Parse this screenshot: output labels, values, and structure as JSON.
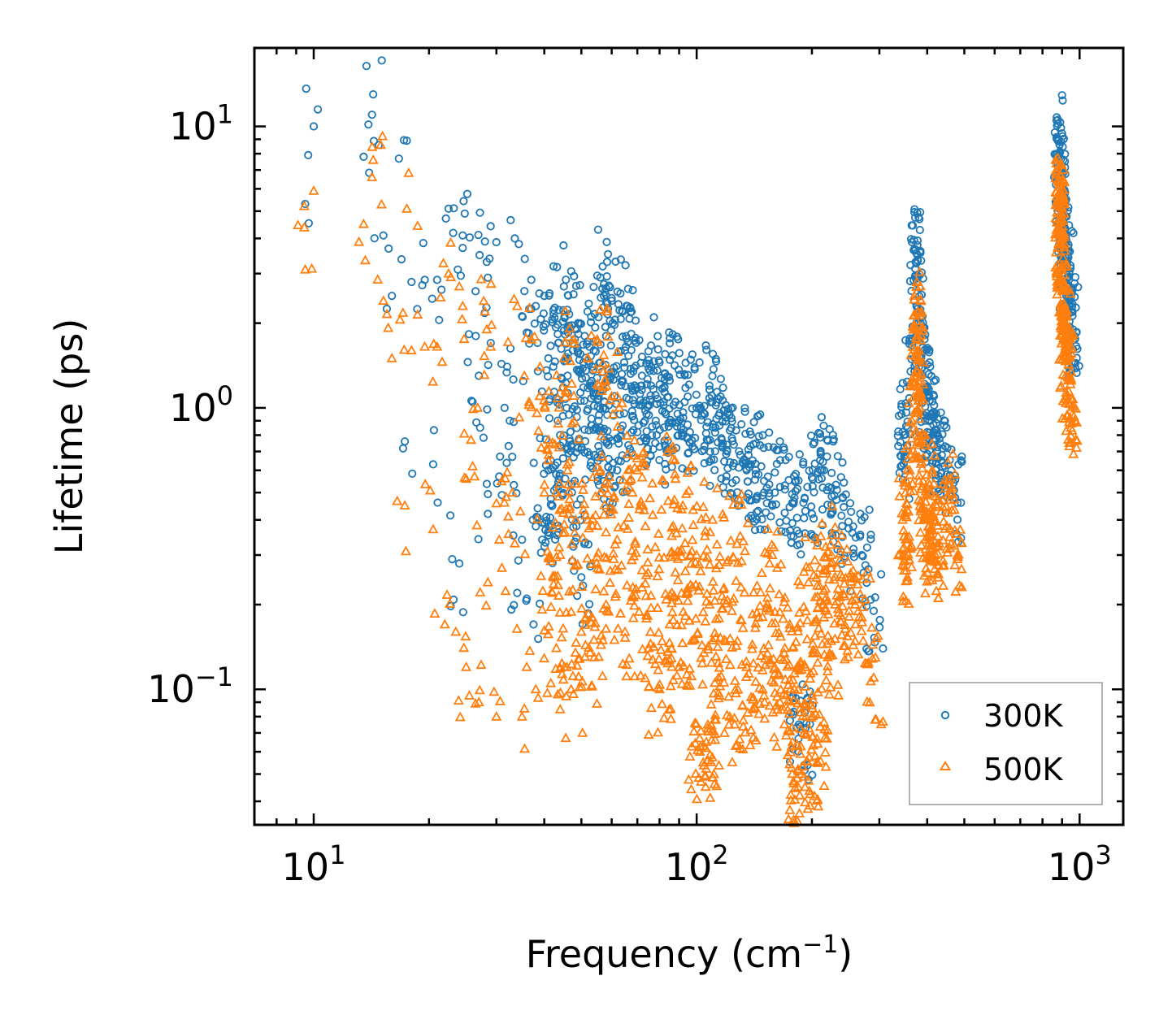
{
  "chart_data": {
    "type": "scatter",
    "title": "",
    "xlabel": "Frequency (cm",
    "xlabel_sup": "−1",
    "xlabel_end": ")",
    "ylabel": "Lifetime (ps)",
    "xscale": "log",
    "yscale": "log",
    "xlim": [
      7,
      1300
    ],
    "ylim": [
      0.033,
      19
    ],
    "x_ticks": [
      {
        "value": 10,
        "base": "10",
        "exp": "1"
      },
      {
        "value": 100,
        "base": "10",
        "exp": "2"
      },
      {
        "value": 1000,
        "base": "10",
        "exp": "3"
      }
    ],
    "y_ticks": [
      {
        "value": 0.1,
        "base": "10",
        "exp": "−1"
      },
      {
        "value": 1,
        "base": "10",
        "exp": "0"
      },
      {
        "value": 10,
        "base": "10",
        "exp": "1"
      }
    ],
    "legend_position": "bottom-right",
    "series": [
      {
        "name": "300K",
        "marker": "circle",
        "color": "#1f77b4",
        "points": [
          [
            9.5,
            5.3
          ],
          [
            10,
            10
          ],
          [
            13.5,
            7.8
          ],
          [
            14.2,
            11
          ],
          [
            14.3,
            13
          ],
          [
            15.2,
            4.1
          ],
          [
            16,
            2.5
          ],
          [
            17.3,
            0.76
          ],
          [
            17.5,
            8.9
          ],
          [
            18,
            2.8
          ],
          [
            19.5,
            2.85
          ],
          [
            20.5,
            0.63
          ],
          [
            21,
            2.85
          ],
          [
            22.5,
            5.1
          ],
          [
            23,
            0.29
          ],
          [
            24,
            0.28
          ],
          [
            24.5,
            3.7
          ],
          [
            24.5,
            4.1
          ],
          [
            24.8,
            4.9
          ],
          [
            26,
            1.05
          ],
          [
            26.5,
            1.8
          ],
          [
            27,
            1.3
          ],
          [
            27.2,
            0.85
          ],
          [
            28,
            3.9
          ],
          [
            28.3,
            3.3
          ],
          [
            28.5,
            2.9
          ],
          [
            28.5,
            0.42
          ],
          [
            29,
            1.7
          ],
          [
            30.5,
            0.57
          ],
          [
            31,
            0.49
          ],
          [
            31.5,
            1
          ],
          [
            32,
            1.4
          ],
          [
            32.5,
            0.9
          ],
          [
            33,
            0.67
          ],
          [
            33.5,
            4
          ],
          [
            34,
            0.22
          ],
          [
            35,
            0.34
          ],
          [
            35.5,
            2.6
          ],
          [
            36,
            0.21
          ],
          [
            36,
            1.85
          ],
          [
            37,
            2.85
          ],
          [
            37.5,
            0.17
          ],
          [
            38,
            2.3
          ],
          [
            38.5,
            1.35
          ],
          [
            39,
            0.78
          ],
          [
            39.5,
            0.34
          ],
          [
            40,
            2.5
          ],
          [
            40.5,
            0.41
          ],
          [
            41,
            1.5
          ],
          [
            42,
            0.45
          ],
          [
            43,
            0.52
          ],
          [
            43.5,
            1.7
          ],
          [
            44,
            0.8
          ],
          [
            45,
            2.7
          ],
          [
            46,
            1.3
          ],
          [
            47,
            0.73
          ],
          [
            47.5,
            1.6
          ],
          [
            48,
            0.55
          ],
          [
            49,
            2
          ],
          [
            50,
            0.25
          ],
          [
            51,
            1.8
          ],
          [
            52,
            0.99
          ],
          [
            53,
            1.2
          ],
          [
            54,
            0.68
          ],
          [
            55,
            2.95
          ],
          [
            56,
            0.85
          ],
          [
            57,
            1
          ],
          [
            58,
            1.8
          ],
          [
            59,
            0.78
          ],
          [
            60,
            2.4
          ],
          [
            61,
            1.1
          ],
          [
            62,
            0.6
          ],
          [
            63,
            0.95
          ],
          [
            65,
            1.6
          ],
          [
            66,
            2.3
          ],
          [
            68,
            1.15
          ],
          [
            70,
            0.82
          ],
          [
            72,
            1.3
          ],
          [
            74,
            0.95
          ],
          [
            76,
            1.2
          ],
          [
            78,
            0.75
          ],
          [
            80,
            1.45
          ],
          [
            82,
            1.05
          ],
          [
            85,
            1.25
          ],
          [
            88,
            1.05
          ],
          [
            90,
            0.9
          ],
          [
            93,
            1.05
          ],
          [
            96,
            0.82
          ],
          [
            100,
            1
          ],
          [
            105,
            0.95
          ],
          [
            108,
            1.2
          ],
          [
            112,
            0.85
          ],
          [
            116,
            0.78
          ],
          [
            120,
            0.7
          ],
          [
            125,
            0.74
          ],
          [
            130,
            0.68
          ],
          [
            135,
            0.6
          ],
          [
            140,
            0.65
          ],
          [
            145,
            0.58
          ],
          [
            150,
            0.55
          ],
          [
            160,
            0.5
          ],
          [
            170,
            0.53
          ],
          [
            180,
            0.48
          ],
          [
            190,
            0.46
          ],
          [
            200,
            0.42
          ],
          [
            210,
            0.65
          ],
          [
            215,
            0.6
          ],
          [
            225,
            0.52
          ],
          [
            240,
            0.38
          ],
          [
            255,
            0.36
          ],
          [
            270,
            0.3
          ],
          [
            290,
            0.19
          ],
          [
            185,
            0.075
          ],
          [
            188,
            0.07
          ],
          [
            345,
            0.82
          ],
          [
            350,
            0.6
          ],
          [
            360,
            1.2
          ],
          [
            370,
            2.4
          ],
          [
            373,
            3.3
          ],
          [
            377,
            3.5
          ],
          [
            378,
            2.9
          ],
          [
            380,
            2
          ],
          [
            385,
            1.5
          ],
          [
            390,
            1.1
          ],
          [
            395,
            0.9
          ],
          [
            400,
            0.8
          ],
          [
            405,
            1.1
          ],
          [
            410,
            0.95
          ],
          [
            415,
            0.87
          ],
          [
            425,
            0.7
          ],
          [
            435,
            0.65
          ],
          [
            450,
            0.58
          ],
          [
            480,
            0.46
          ],
          [
            880,
            8.9
          ],
          [
            885,
            8
          ],
          [
            888,
            7.3
          ],
          [
            890,
            6.5
          ],
          [
            892,
            5.6
          ],
          [
            895,
            4.8
          ],
          [
            898,
            5.2
          ],
          [
            900,
            4.2
          ],
          [
            905,
            3.8
          ],
          [
            910,
            3.2
          ],
          [
            915,
            3.7
          ],
          [
            920,
            3.3
          ],
          [
            925,
            2.7
          ],
          [
            930,
            2.6
          ],
          [
            940,
            3
          ],
          [
            950,
            2.2
          ],
          [
            960,
            1.9
          ],
          [
            970,
            1.8
          ]
        ]
      },
      {
        "name": "500K",
        "marker": "triangle",
        "color": "#ff7f0e",
        "points": [
          [
            9.5,
            3.1
          ],
          [
            10,
            5.9
          ],
          [
            13.5,
            4.5
          ],
          [
            14.2,
            6.6
          ],
          [
            14.3,
            7.6
          ],
          [
            15.2,
            2.4
          ],
          [
            16,
            1.5
          ],
          [
            17.3,
            0.45
          ],
          [
            17.5,
            5.1
          ],
          [
            18,
            1.6
          ],
          [
            19.5,
            1.65
          ],
          [
            20.5,
            0.37
          ],
          [
            21,
            1.65
          ],
          [
            22,
            0.17
          ],
          [
            22.5,
            3
          ],
          [
            23.5,
            0.16
          ],
          [
            24,
            2.7
          ],
          [
            24.5,
            2.3
          ],
          [
            25,
            0.12
          ],
          [
            25.5,
            0.095
          ],
          [
            26,
            0.62
          ],
          [
            26.3,
            0.57
          ],
          [
            26.8,
            1
          ],
          [
            27,
            0.09
          ],
          [
            28,
            2.2
          ],
          [
            28.3,
            1.9
          ],
          [
            28.5,
            0.24
          ],
          [
            29,
            1.65
          ],
          [
            30,
            0.08
          ],
          [
            30.5,
            0.34
          ],
          [
            31,
            0.27
          ],
          [
            32,
            0.59
          ],
          [
            33,
            0.5
          ],
          [
            33.5,
            0.33
          ],
          [
            34,
            2.3
          ],
          [
            35,
            0.08
          ],
          [
            35.5,
            1.3
          ],
          [
            36,
            0.12
          ],
          [
            36.5,
            1.05
          ],
          [
            37,
            1.75
          ],
          [
            38,
            0.1
          ],
          [
            39,
            1.4
          ],
          [
            40,
            0.5
          ],
          [
            41,
            0.77
          ],
          [
            42,
            0.22
          ],
          [
            43,
            0.14
          ],
          [
            44,
            0.3
          ],
          [
            45,
            1.5
          ],
          [
            46,
            0.6
          ],
          [
            47,
            0.1
          ],
          [
            48,
            0.36
          ],
          [
            50,
            0.16
          ],
          [
            52,
            0.4
          ],
          [
            54,
            0.13
          ],
          [
            55,
            1.75
          ],
          [
            56,
            0.5
          ],
          [
            58,
            0.2
          ],
          [
            60,
            1.1
          ],
          [
            62,
            0.34
          ],
          [
            65,
            0.16
          ],
          [
            68,
            0.5
          ],
          [
            70,
            0.6
          ],
          [
            72,
            0.23
          ],
          [
            75,
            0.14
          ],
          [
            78,
            0.32
          ],
          [
            80,
            0.1
          ],
          [
            82,
            0.55
          ],
          [
            85,
            0.17
          ],
          [
            88,
            0.26
          ],
          [
            90,
            0.12
          ],
          [
            92,
            0.45
          ],
          [
            95,
            0.22
          ],
          [
            98,
            0.15
          ],
          [
            100,
            0.3
          ],
          [
            102,
            0.06
          ],
          [
            104,
            0.055
          ],
          [
            106,
            0.065
          ],
          [
            108,
            0.2
          ],
          [
            110,
            0.4
          ],
          [
            114,
            0.11
          ],
          [
            118,
            0.15
          ],
          [
            122,
            0.08
          ],
          [
            125,
            0.21
          ],
          [
            130,
            0.35
          ],
          [
            135,
            0.12
          ],
          [
            140,
            0.085
          ],
          [
            145,
            0.18
          ],
          [
            150,
            0.095
          ],
          [
            155,
            0.28
          ],
          [
            160,
            0.12
          ],
          [
            165,
            0.09
          ],
          [
            170,
            0.14
          ],
          [
            175,
            0.17
          ],
          [
            180,
            0.1
          ],
          [
            184,
            0.045
          ],
          [
            186,
            0.042
          ],
          [
            188,
            0.05
          ],
          [
            192,
            0.12
          ],
          [
            196,
            0.24
          ],
          [
            200,
            0.095
          ],
          [
            204,
            0.058
          ],
          [
            206,
            0.055
          ],
          [
            210,
            0.27
          ],
          [
            215,
            0.18
          ],
          [
            220,
            0.13
          ],
          [
            225,
            0.3
          ],
          [
            230,
            0.2
          ],
          [
            240,
            0.25
          ],
          [
            250,
            0.19
          ],
          [
            260,
            0.17
          ],
          [
            270,
            0.18
          ],
          [
            290,
            0.11
          ],
          [
            345,
            0.4
          ],
          [
            350,
            0.3
          ],
          [
            355,
            0.25
          ],
          [
            360,
            0.6
          ],
          [
            365,
            0.9
          ],
          [
            370,
            1.3
          ],
          [
            375,
            1.9
          ],
          [
            378,
            2.2
          ],
          [
            380,
            1.5
          ],
          [
            383,
            1.1
          ],
          [
            387,
            0.75
          ],
          [
            390,
            0.55
          ],
          [
            395,
            0.42
          ],
          [
            400,
            0.35
          ],
          [
            405,
            0.3
          ],
          [
            410,
            0.5
          ],
          [
            415,
            0.4
          ],
          [
            420,
            0.3
          ],
          [
            430,
            0.33
          ],
          [
            450,
            0.38
          ],
          [
            460,
            0.47
          ],
          [
            480,
            0.29
          ],
          [
            880,
            4.4
          ],
          [
            885,
            5.2
          ],
          [
            888,
            5.8
          ],
          [
            890,
            5.5
          ],
          [
            892,
            4.6
          ],
          [
            895,
            3.8
          ],
          [
            898,
            3.2
          ],
          [
            900,
            2.6
          ],
          [
            905,
            2.2
          ],
          [
            910,
            1.9
          ],
          [
            915,
            1.6
          ],
          [
            920,
            1.3
          ],
          [
            925,
            1.1
          ],
          [
            930,
            1.5
          ],
          [
            940,
            1.8
          ],
          [
            950,
            1.25
          ],
          [
            960,
            1.02
          ]
        ]
      }
    ]
  },
  "legend": {
    "items": [
      "300K",
      "500K"
    ]
  }
}
